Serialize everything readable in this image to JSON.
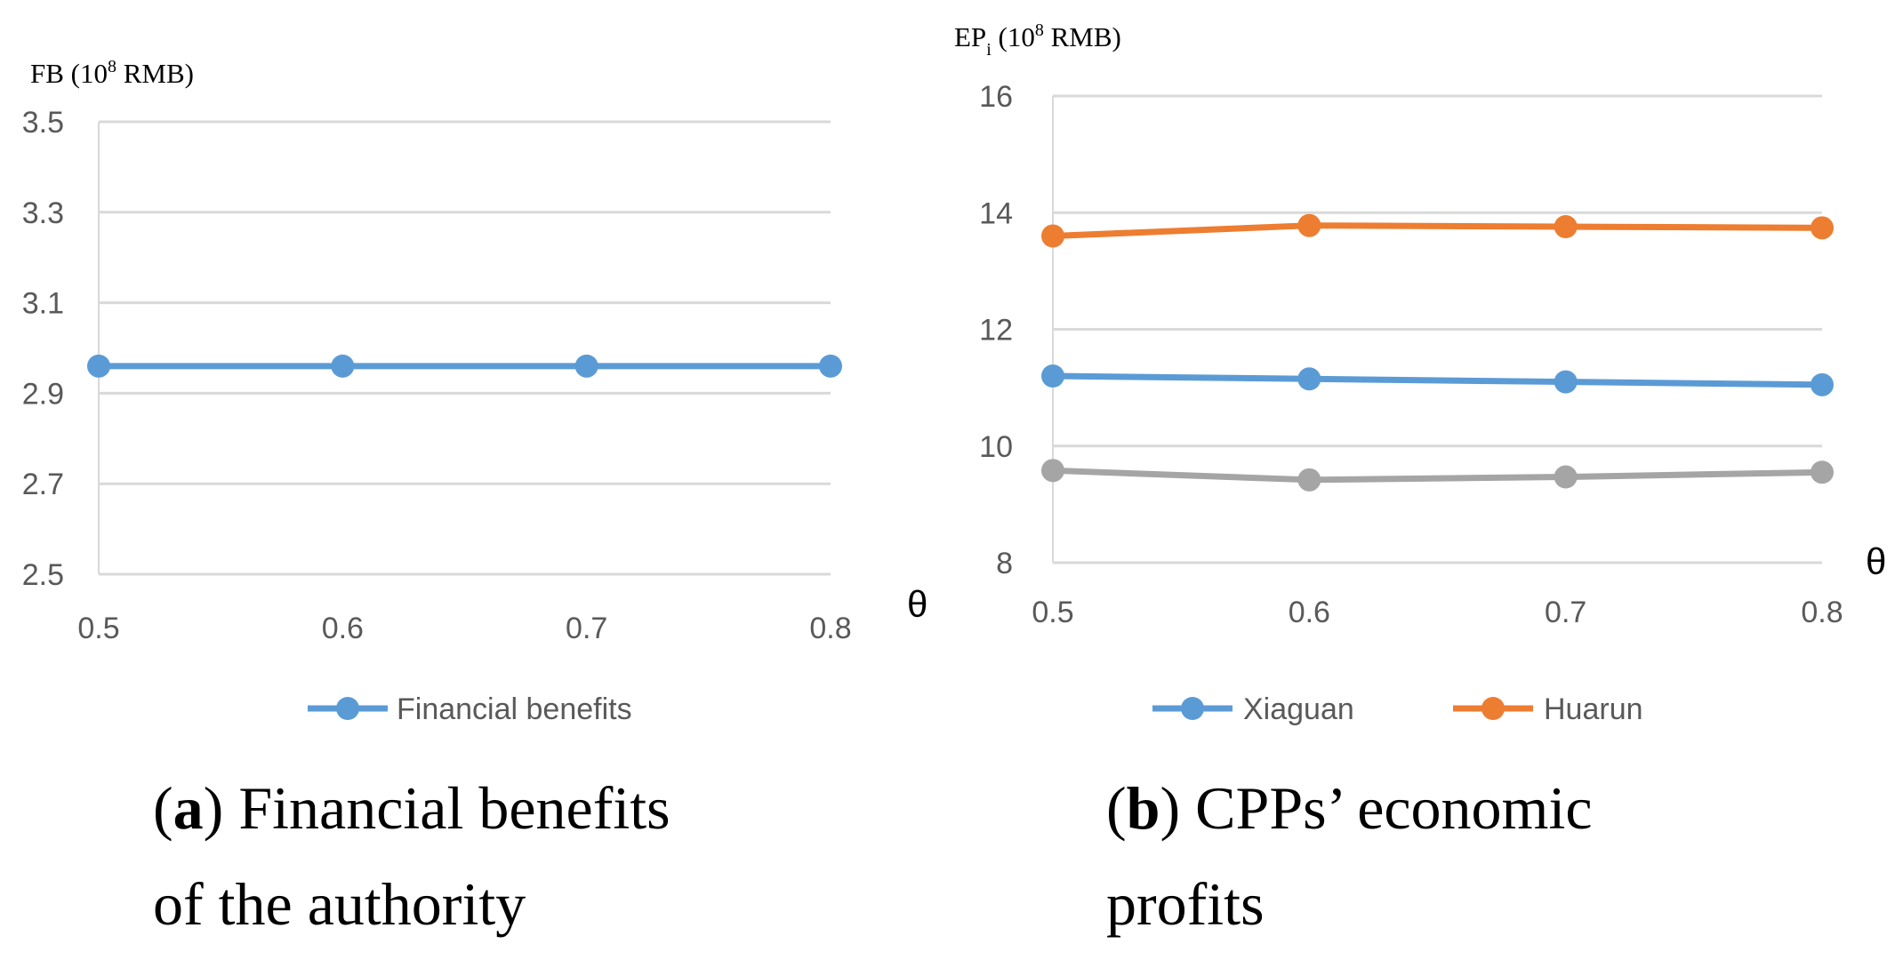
{
  "chart_data": [
    {
      "type": "line",
      "panel": "a",
      "y_unit": {
        "symbol": "FB",
        "base": "10",
        "exponent": "8",
        "currency": "RMB"
      },
      "xlabel": "θ",
      "categories": [
        "0.5",
        "0.6",
        "0.7",
        "0.8"
      ],
      "x": [
        0.5,
        0.6,
        0.7,
        0.8
      ],
      "ylim": [
        2.5,
        3.5
      ],
      "yticks": [
        2.5,
        2.7,
        2.9,
        3.1,
        3.3,
        3.5
      ],
      "ytick_labels": [
        "2.5",
        "2.7",
        "2.9",
        "3.1",
        "3.3",
        "3.5"
      ],
      "grid": true,
      "legend_position": "bottom",
      "series": [
        {
          "name": "Financial benefits",
          "color": "#5b9bd5",
          "values": [
            2.96,
            2.96,
            2.96,
            2.96
          ]
        }
      ],
      "caption": {
        "label": "a",
        "line1": "Financial benefits",
        "line2": "of the authority"
      }
    },
    {
      "type": "line",
      "panel": "b",
      "y_unit": {
        "symbol": "EP",
        "subscript": "i",
        "base": "10",
        "exponent": "8",
        "currency": "RMB"
      },
      "xlabel": "θ",
      "categories": [
        "0.5",
        "0.6",
        "0.7",
        "0.8"
      ],
      "x": [
        0.5,
        0.6,
        0.7,
        0.8
      ],
      "ylim": [
        8,
        16
      ],
      "yticks": [
        8,
        10,
        12,
        14,
        16
      ],
      "ytick_labels": [
        "8",
        "10",
        "12",
        "14",
        "16"
      ],
      "grid": true,
      "legend_position": "bottom",
      "series": [
        {
          "name": "Xiaguan",
          "color": "#5b9bd5",
          "values": [
            11.2,
            11.15,
            11.1,
            11.05
          ]
        },
        {
          "name": "Huarun",
          "color": "#ed7d31",
          "values": [
            13.6,
            13.78,
            13.76,
            13.74
          ]
        },
        {
          "name": "",
          "color": "#a5a5a5",
          "values": [
            9.58,
            9.42,
            9.47,
            9.55
          ]
        }
      ],
      "caption": {
        "label": "b",
        "line1": "CPPs’  economic",
        "line2": "profits"
      }
    }
  ]
}
